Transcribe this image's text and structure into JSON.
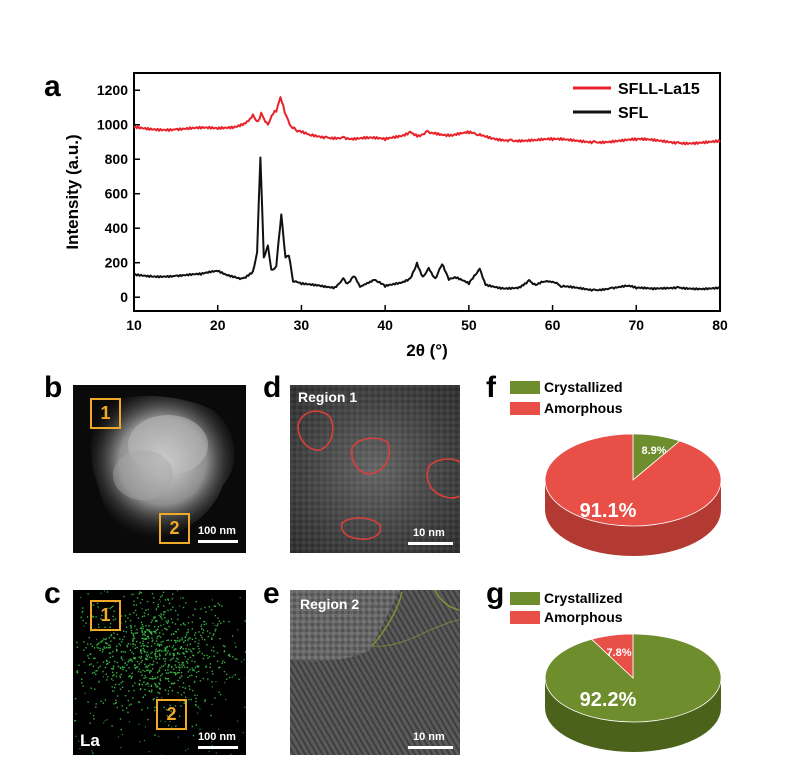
{
  "panel_labels": {
    "a": "a",
    "b": "b",
    "c": "c",
    "d": "d",
    "e": "e",
    "f": "f",
    "g": "g"
  },
  "xrd": {
    "xlabel": "2θ (°)",
    "ylabel": "Intensity (a.u.)",
    "xticks": [
      "10",
      "20",
      "30",
      "40",
      "50",
      "60",
      "70",
      "80"
    ],
    "yticks": [
      "0",
      "200",
      "400",
      "600",
      "800",
      "1000",
      "1200"
    ],
    "legend": [
      {
        "name": "SFLL-La15",
        "color": "#e8232a"
      },
      {
        "name": "SFL",
        "color": "#111111"
      }
    ]
  },
  "chart_data": [
    {
      "type": "line",
      "xlabel": "2θ (°)",
      "ylabel": "Intensity (a.u.)",
      "xlim": [
        10,
        80
      ],
      "ylim": [
        -80,
        1300
      ],
      "legend_position": "top-right",
      "series": [
        {
          "name": "SFLL-La15",
          "color": "#e8232a",
          "x": [
            10,
            15,
            20,
            22,
            23.5,
            24.2,
            24.8,
            25.2,
            26.0,
            26.6,
            27.0,
            27.5,
            28.0,
            28.6,
            29.5,
            31,
            33,
            35,
            36,
            38,
            40,
            42,
            43,
            44,
            45,
            46,
            47,
            48,
            50,
            51,
            53,
            55,
            58,
            60,
            65,
            70,
            75,
            80
          ],
          "y": [
            985,
            975,
            975,
            990,
            1020,
            1060,
            1020,
            1070,
            1000,
            1060,
            1075,
            1160,
            1070,
            1000,
            960,
            940,
            930,
            930,
            920,
            920,
            910,
            935,
            960,
            940,
            965,
            955,
            940,
            935,
            950,
            940,
            920,
            915,
            910,
            910,
            905,
            910,
            900,
            900
          ]
        },
        {
          "name": "SFL",
          "color": "#111111",
          "x": [
            10,
            12,
            15,
            18,
            20,
            21,
            22,
            23,
            24.2,
            24.7,
            25.1,
            25.5,
            26.0,
            26.4,
            27.0,
            27.6,
            28.1,
            28.5,
            29.0,
            30,
            32,
            34,
            35,
            35.5,
            36.3,
            37,
            38.7,
            40,
            42,
            43,
            43.8,
            44.5,
            45.2,
            46,
            46.8,
            47.6,
            48.5,
            50,
            51.3,
            52,
            54,
            56,
            57.2,
            58,
            59,
            60.2,
            61,
            63,
            65,
            67,
            69,
            70,
            72,
            75,
            78,
            80
          ],
          "y": [
            130,
            125,
            125,
            130,
            150,
            130,
            120,
            110,
            150,
            260,
            810,
            230,
            300,
            160,
            180,
            480,
            230,
            240,
            90,
            75,
            70,
            60,
            110,
            80,
            120,
            60,
            100,
            60,
            85,
            110,
            200,
            120,
            170,
            110,
            190,
            100,
            110,
            75,
            165,
            70,
            55,
            60,
            100,
            70,
            90,
            85,
            60,
            55,
            45,
            55,
            65,
            50,
            45,
            60,
            50,
            50
          ]
        }
      ]
    },
    {
      "type": "pie",
      "title": "",
      "legend": [
        "Crystallized",
        "Amorphous"
      ],
      "colors": [
        "#6e8d2c",
        "#e84f47"
      ],
      "slices": [
        {
          "name": "Crystallized",
          "value": 8.9,
          "label": "8.9%"
        },
        {
          "name": "Amorphous",
          "value": 91.1,
          "label": "91.1%"
        }
      ]
    },
    {
      "type": "pie",
      "title": "",
      "legend": [
        "Crystallized",
        "Amorphous"
      ],
      "colors": [
        "#6e8d2c",
        "#e84f47"
      ],
      "slices": [
        {
          "name": "Crystallized",
          "value": 92.2,
          "label": "92.2%"
        },
        {
          "name": "Amorphous",
          "value": 7.8,
          "label": "7.8%"
        }
      ]
    }
  ],
  "images": {
    "b": {
      "boxes": [
        "1",
        "2"
      ],
      "scalebar": "100 nm"
    },
    "c": {
      "boxes": [
        "1",
        "2"
      ],
      "scalebar": "100 nm",
      "element": "La"
    },
    "d": {
      "title": "Region 1",
      "scalebar": "10 nm"
    },
    "e": {
      "title": "Region 2",
      "scalebar": "10 nm"
    }
  },
  "colors": {
    "orange_box": "#f0a928",
    "red_outline": "#d9403a",
    "green_outline": "#7c8f3a",
    "la_map": "#3cc24a"
  }
}
